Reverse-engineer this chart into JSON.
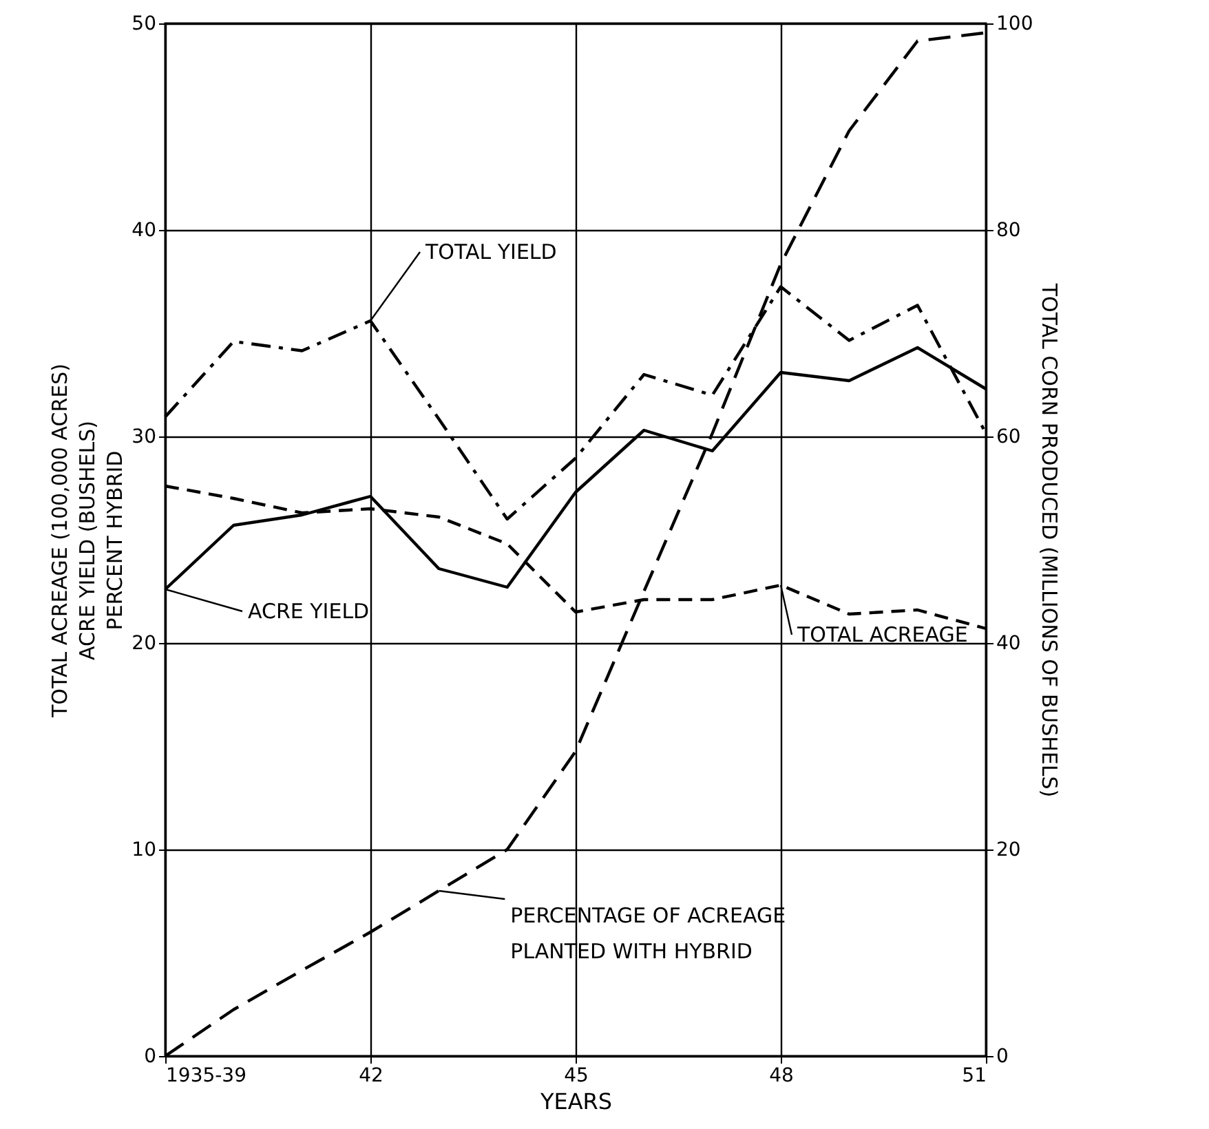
{
  "chart_data": {
    "type": "line",
    "xlabel": "YEARS",
    "ylabel": "TOTAL ACREAGE (100,000 ACRES)\nACRE YIELD (BUSHELS)\nPERCENT HYBRID",
    "y2label": "TOTAL CORN PRODUCED (MILLIONS OF BUSHELS)",
    "x": [
      39,
      40,
      41,
      42,
      43,
      44,
      45,
      46,
      47,
      48,
      49,
      50,
      51
    ],
    "xlim": [
      39,
      51
    ],
    "xticks": [
      {
        "value": 39,
        "label": "1935-39"
      },
      42,
      45,
      48,
      51
    ],
    "series": [
      {
        "name": "TOTAL YIELD",
        "color": "#000000",
        "axis": "y2",
        "line_style": "dashed",
        "values": [
          61.9,
          69.2,
          68.3,
          71.2,
          61.7,
          52.0,
          57.9,
          66.0,
          64.0,
          74.5,
          69.3,
          72.7,
          60.3
        ]
      },
      {
        "name": "ACRE YIELD",
        "color": "#000000",
        "line_style": "solid",
        "values": [
          22.6,
          25.7,
          26.2,
          27.1,
          23.6,
          22.7,
          27.3,
          30.3,
          29.3,
          33.1,
          32.7,
          34.3,
          32.3
        ]
      },
      {
        "name": "TOTAL ACREAGE",
        "color": "#000000",
        "line_style": "dashed",
        "values": [
          27.6,
          27.0,
          26.3,
          26.5,
          26.1,
          24.8,
          21.5,
          22.1,
          22.1,
          22.8,
          21.4,
          21.6,
          20.7
        ]
      },
      {
        "name": "PERCENTAGE OF ACREAGE PLANTED WITH HYBRID",
        "color": "#000000",
        "axis": "y2",
        "line_style": "dashed",
        "values": [
          0,
          4.5,
          8.3,
          12.0,
          16.0,
          20.0,
          29.5,
          45.0,
          60.3,
          76.7,
          89.6,
          98.3,
          99.1
        ]
      }
    ],
    "ylim": [
      0,
      50
    ],
    "yticks": [
      0,
      10,
      20,
      30,
      40,
      50
    ],
    "y2lim": [
      0,
      100
    ],
    "y2ticks": [
      0,
      20,
      40,
      60,
      80,
      100
    ],
    "grid": true
  }
}
